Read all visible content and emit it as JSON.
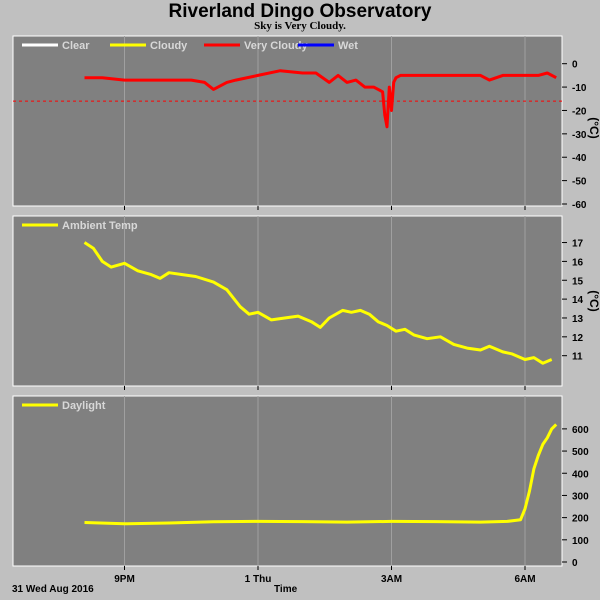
{
  "title": "Riverland Dingo Observatory",
  "subtitle": "Sky is Very Cloudy.",
  "x_axis": {
    "tick_labels": [
      "9PM",
      "1 Thu",
      "3AM",
      "6AM"
    ],
    "date_label": "31 Wed Aug 2016",
    "label": "Time"
  },
  "colors": {
    "panel_bg": "#808080",
    "page_bg": "#c0c0c0",
    "clear": "#ffffff",
    "cloudy": "#ffff00",
    "very_cloudy": "#ff0000",
    "wet": "#0000ff",
    "grid": "#a0a0a0",
    "threshold": "#ff0000"
  },
  "chart_data": [
    {
      "type": "line",
      "legend": [
        "Clear",
        "Cloudy",
        "Very Cloudy",
        "Wet"
      ],
      "ylabel": "(°C)",
      "ylim": [
        -60,
        5
      ],
      "yticks": [
        0,
        -10,
        -20,
        -30,
        -40,
        -50,
        -60
      ],
      "threshold": -16,
      "x_hours": [
        -3.9,
        -3.5,
        -3,
        -2.5,
        -2,
        -1.5,
        -1.2,
        -1.0,
        -0.7,
        -0.5,
        0,
        0.5,
        1.0,
        1.3,
        1.6,
        1.8,
        2.0,
        2.2,
        2.4,
        2.6,
        2.8,
        2.85,
        2.9,
        2.95,
        3.0,
        3.05,
        3.1,
        3.2,
        3.5,
        4.0,
        4.5,
        5.0,
        5.2,
        5.5,
        6.0,
        6.3,
        6.5,
        6.7
      ],
      "series": [
        {
          "name": "Very Cloudy",
          "values": [
            -6,
            -6,
            -7,
            -7,
            -7,
            -7,
            -8,
            -11,
            -8,
            -7,
            -5,
            -3,
            -4,
            -4,
            -8,
            -5,
            -8,
            -7,
            -10,
            -10,
            -12,
            -22,
            -27,
            -10,
            -20,
            -8,
            -6,
            -5,
            -5,
            -5,
            -5,
            -5,
            -7,
            -5,
            -5,
            -5,
            -4,
            -6
          ]
        }
      ]
    },
    {
      "type": "line",
      "legend": [
        "Ambient Temp"
      ],
      "ylabel": "(°C)",
      "ylim": [
        10.4,
        17.4
      ],
      "yticks": [
        11,
        12,
        13,
        14,
        15,
        16,
        17
      ],
      "x_hours": [
        -3.9,
        -3.7,
        -3.5,
        -3.3,
        -3.0,
        -2.7,
        -2.4,
        -2.2,
        -2.0,
        -1.7,
        -1.4,
        -1.0,
        -0.7,
        -0.4,
        -0.2,
        0,
        0.3,
        0.6,
        0.9,
        1.2,
        1.4,
        1.6,
        1.9,
        2.1,
        2.3,
        2.5,
        2.7,
        2.9,
        3.1,
        3.3,
        3.5,
        3.8,
        4.1,
        4.4,
        4.7,
        5.0,
        5.2,
        5.5,
        5.7,
        6.0,
        6.2,
        6.4,
        6.6
      ],
      "series": [
        {
          "name": "Ambient Temp",
          "values": [
            17.0,
            16.7,
            16.0,
            15.7,
            15.9,
            15.5,
            15.3,
            15.1,
            15.4,
            15.3,
            15.2,
            14.9,
            14.5,
            13.6,
            13.2,
            13.3,
            12.9,
            13.0,
            13.1,
            12.8,
            12.5,
            13.0,
            13.4,
            13.3,
            13.4,
            13.2,
            12.8,
            12.6,
            12.3,
            12.4,
            12.1,
            11.9,
            12.0,
            11.6,
            11.4,
            11.3,
            11.5,
            11.2,
            11.1,
            10.8,
            10.9,
            10.6,
            10.8
          ]
        }
      ]
    },
    {
      "type": "line",
      "legend": [
        "Daylight"
      ],
      "ylim": [
        0,
        640
      ],
      "yticks": [
        0,
        100,
        200,
        300,
        400,
        500,
        600
      ],
      "x_hours": [
        -3.9,
        -3.0,
        -2.0,
        -1.0,
        0,
        1.0,
        2.0,
        3.0,
        4.0,
        5.0,
        5.6,
        5.9,
        6.0,
        6.1,
        6.2,
        6.3,
        6.4,
        6.5,
        6.6,
        6.7
      ],
      "series": [
        {
          "name": "Daylight",
          "values": [
            178,
            172,
            176,
            181,
            183,
            182,
            180,
            183,
            182,
            180,
            183,
            190,
            240,
            320,
            420,
            480,
            530,
            560,
            600,
            620
          ]
        }
      ]
    }
  ]
}
